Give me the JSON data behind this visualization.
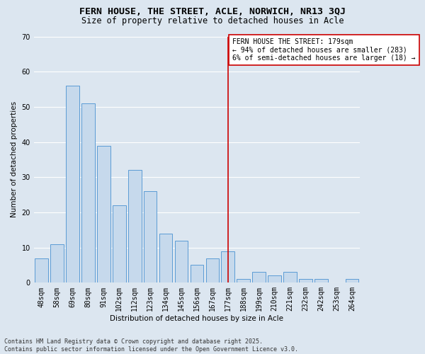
{
  "title": "FERN HOUSE, THE STREET, ACLE, NORWICH, NR13 3QJ",
  "subtitle": "Size of property relative to detached houses in Acle",
  "xlabel": "Distribution of detached houses by size in Acle",
  "ylabel": "Number of detached properties",
  "categories": [
    "48sqm",
    "58sqm",
    "69sqm",
    "80sqm",
    "91sqm",
    "102sqm",
    "112sqm",
    "123sqm",
    "134sqm",
    "145sqm",
    "156sqm",
    "167sqm",
    "177sqm",
    "188sqm",
    "199sqm",
    "210sqm",
    "221sqm",
    "232sqm",
    "242sqm",
    "253sqm",
    "264sqm"
  ],
  "values": [
    7,
    11,
    56,
    51,
    39,
    22,
    32,
    26,
    14,
    12,
    5,
    7,
    9,
    1,
    3,
    2,
    3,
    1,
    1,
    0,
    1
  ],
  "bar_color": "#c6d9ec",
  "bar_edge_color": "#5b9bd5",
  "background_color": "#dce6f0",
  "grid_color": "#ffffff",
  "vline_index": 12,
  "vline_color": "#cc0000",
  "annotation_line1": "FERN HOUSE THE STREET: 179sqm",
  "annotation_line2": "← 94% of detached houses are smaller (283)",
  "annotation_line3": "6% of semi-detached houses are larger (18) →",
  "annotation_box_color": "#ffffff",
  "annotation_box_edge": "#cc0000",
  "footer_line1": "Contains HM Land Registry data © Crown copyright and database right 2025.",
  "footer_line2": "Contains public sector information licensed under the Open Government Licence v3.0.",
  "ylim": [
    0,
    70
  ],
  "yticks": [
    0,
    10,
    20,
    30,
    40,
    50,
    60,
    70
  ],
  "title_fontsize": 9.5,
  "subtitle_fontsize": 8.5,
  "axis_label_fontsize": 7.5,
  "tick_fontsize": 7,
  "annotation_fontsize": 7,
  "footer_fontsize": 6
}
